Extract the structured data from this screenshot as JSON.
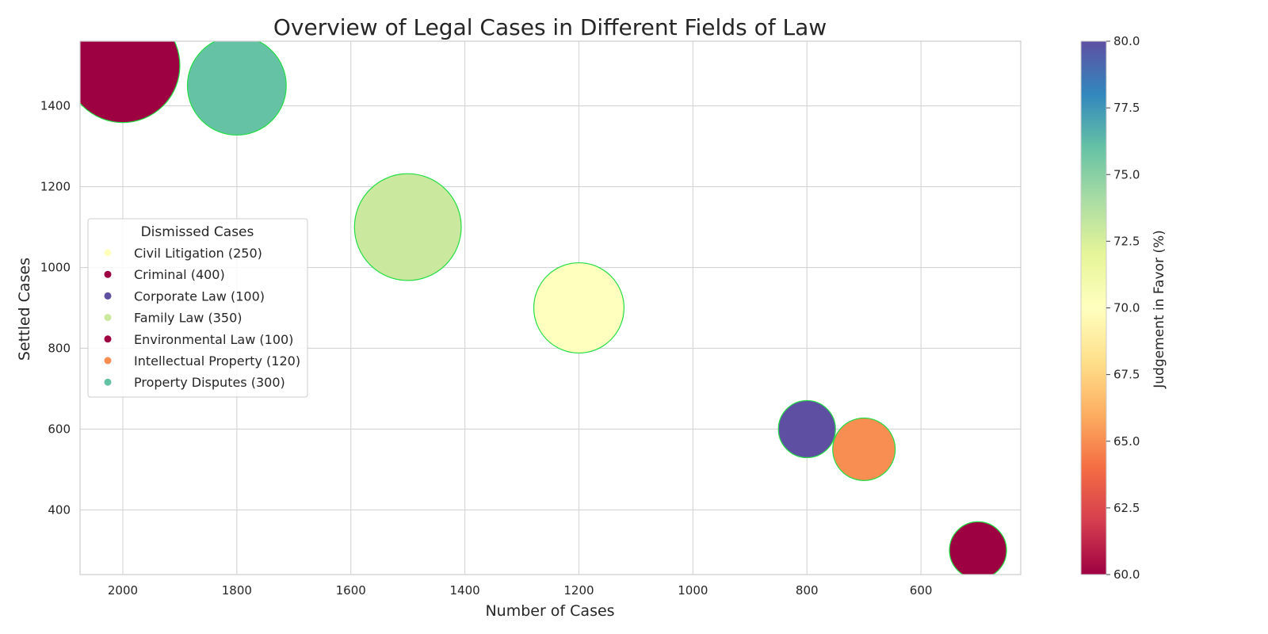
{
  "chart_data": {
    "type": "scatter",
    "title": "Overview of Legal Cases in Different Fields of Law",
    "xlabel": "Number of Cases",
    "ylabel": "Settled Cases",
    "xlim": [
      2075,
      425
    ],
    "ylim": [
      240,
      1560
    ],
    "x_inverted": true,
    "x_ticks": [
      2000,
      1800,
      1600,
      1400,
      1200,
      1000,
      800,
      600
    ],
    "y_ticks": [
      400,
      600,
      800,
      1000,
      1200,
      1400
    ],
    "grid": true,
    "size_field": "Dismissed Cases",
    "color_field": "Judgement in Favor (%)",
    "colormap": "Spectral",
    "color_range": [
      60,
      80
    ],
    "colorbar_ticks": [
      "60.0",
      "62.5",
      "65.0",
      "67.5",
      "70.0",
      "72.5",
      "75.0",
      "77.5",
      "80.0"
    ],
    "colorbar_label": "Judgement in Favor (%)",
    "legend_title": "Dismissed Cases",
    "legend_position": "center-left",
    "marker_edge_color": "#22dd44",
    "points": [
      {
        "label": "Civil Litigation (250)",
        "x": 1200,
        "y": 900,
        "dismissed": 250,
        "favor": 70,
        "color": "#ffffbe"
      },
      {
        "label": "Criminal (400)",
        "x": 2000,
        "y": 1500,
        "dismissed": 400,
        "favor": 60,
        "color": "#9e0142"
      },
      {
        "label": "Corporate Law (100)",
        "x": 800,
        "y": 600,
        "dismissed": 100,
        "favor": 80,
        "color": "#5e4fa2"
      },
      {
        "label": "Family Law (350)",
        "x": 1500,
        "y": 1100,
        "dismissed": 350,
        "favor": 73,
        "color": "#cbe99e"
      },
      {
        "label": "Environmental Law (100)",
        "x": 500,
        "y": 300,
        "dismissed": 100,
        "favor": 60,
        "color": "#9e0142"
      },
      {
        "label": "Intellectual Property (120)",
        "x": 700,
        "y": 550,
        "dismissed": 120,
        "favor": 65,
        "color": "#f98e52"
      },
      {
        "label": "Property Disputes (300)",
        "x": 1800,
        "y": 1450,
        "dismissed": 300,
        "favor": 75,
        "color": "#66c2a5"
      }
    ]
  }
}
